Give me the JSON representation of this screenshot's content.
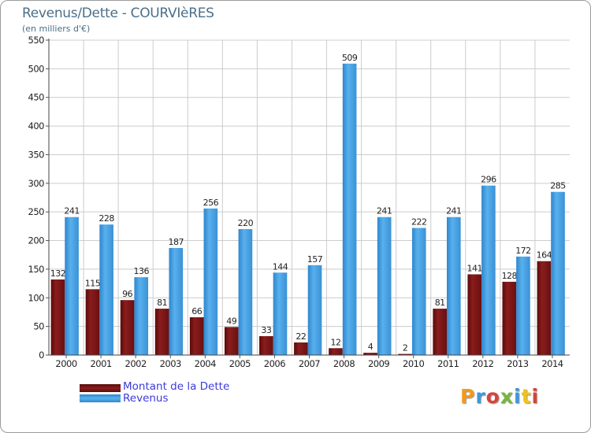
{
  "title": "Revenus/Dette - COURVIèRES",
  "subtitle": "(en milliers d'€)",
  "legend": {
    "dette_label": "Montant de la Dette",
    "revenus_label": "Revenus"
  },
  "colors": {
    "dette": "#7a1414",
    "revenus": "#4aa3e6",
    "grid": "#cccccc"
  },
  "logo": {
    "letters": [
      "P",
      "r",
      "o",
      "x",
      "i",
      "t",
      "i"
    ],
    "colors": [
      "#f29a1b",
      "#3f98d9",
      "#d6443c",
      "#7ab63c",
      "#3f98d9",
      "#f2c21b",
      "#d6443c"
    ]
  },
  "chart_data": {
    "type": "bar",
    "title": "Revenus/Dette - COURVIèRES",
    "ylabel": "(en milliers d'€)",
    "categories": [
      "2000",
      "2001",
      "2002",
      "2003",
      "2004",
      "2005",
      "2006",
      "2007",
      "2008",
      "2009",
      "2010",
      "2011",
      "2012",
      "2013",
      "2014"
    ],
    "series": [
      {
        "name": "Montant de la Dette",
        "values": [
          132,
          115,
          96,
          81,
          66,
          49,
          33,
          22,
          12,
          4,
          2,
          81,
          141,
          128,
          164
        ]
      },
      {
        "name": "Revenus",
        "values": [
          241,
          228,
          136,
          187,
          256,
          220,
          144,
          157,
          509,
          241,
          222,
          241,
          296,
          172,
          285
        ]
      }
    ],
    "ylim": [
      0,
      550
    ],
    "yticks": [
      0,
      50,
      100,
      150,
      200,
      250,
      300,
      350,
      400,
      450,
      500,
      550
    ],
    "grid": true
  }
}
